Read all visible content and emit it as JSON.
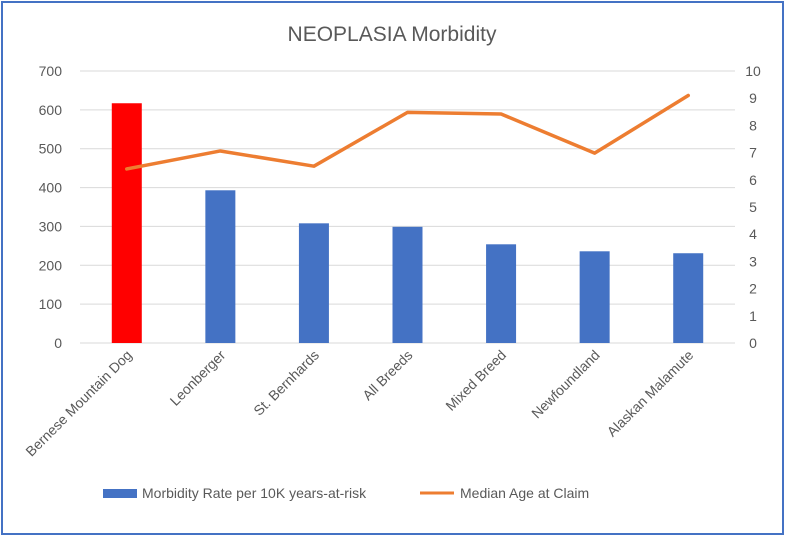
{
  "chart_data": {
    "type": "bar+line",
    "title": "NEOPLASIA Morbidity",
    "categories": [
      "Bernese Mountain Dog",
      "Leonberger",
      "St. Bernhards",
      "All Breeds",
      "Mixed Breed",
      "Newfoundland",
      "Alaskan Malamute"
    ],
    "series": [
      {
        "name": "Morbidity Rate per 10K years-at-risk",
        "type": "bar",
        "axis": "left",
        "color": "#4472C4",
        "highlight_color": "#FF0000",
        "highlight_index": 0,
        "values": [
          617,
          393,
          308,
          299,
          254,
          236,
          231
        ]
      },
      {
        "name": "Median Age at Claim",
        "type": "line",
        "axis": "right",
        "color": "#ED7D31",
        "values": [
          6.4,
          7.06,
          6.5,
          8.48,
          8.42,
          6.98,
          9.1
        ]
      }
    ],
    "y_left": {
      "min": 0,
      "max": 700,
      "ticks": [
        0,
        100,
        200,
        300,
        400,
        500,
        600,
        700
      ]
    },
    "y_right": {
      "min": 0,
      "max": 10,
      "ticks": [
        0,
        1,
        2,
        3,
        4,
        5,
        6,
        7,
        8,
        9,
        10
      ]
    },
    "grid": true,
    "legend": "bottom"
  }
}
